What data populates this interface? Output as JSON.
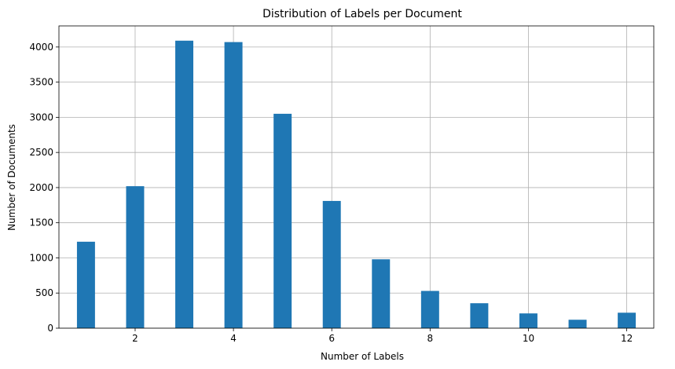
{
  "chart_data": {
    "type": "bar",
    "title": "Distribution of Labels per Document",
    "xlabel": "Number of Labels",
    "ylabel": "Number of Documents",
    "x": [
      1,
      2,
      3,
      4,
      5,
      6,
      7,
      8,
      9,
      10,
      11,
      12
    ],
    "values": [
      1230,
      2020,
      4090,
      4070,
      3050,
      1810,
      980,
      530,
      355,
      210,
      120,
      220
    ],
    "bin_width": 0.367,
    "xlim": [
      0.45,
      12.55
    ],
    "ylim": [
      0,
      4300
    ],
    "xticks": [
      2,
      4,
      6,
      8,
      10,
      12
    ],
    "yticks": [
      0,
      500,
      1000,
      1500,
      2000,
      2500,
      3000,
      3500,
      4000
    ],
    "grid": true,
    "bar_color": "#1f77b4"
  }
}
